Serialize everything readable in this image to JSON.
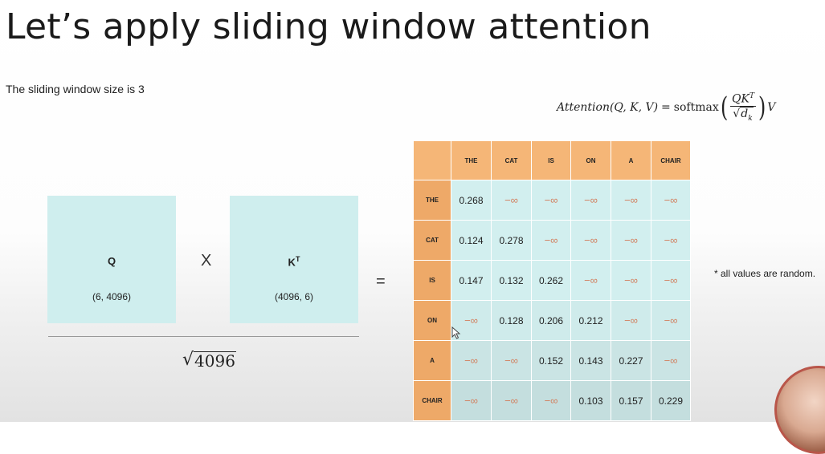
{
  "title": "Let’s apply sliding window attention",
  "subtitle": "The sliding window size is 3",
  "formula": {
    "lhs": "Attention(Q, K, V)",
    "equals": "=",
    "softmax": "softmax",
    "numerator": "QK",
    "numerator_sup": "T",
    "denominator": "d",
    "denominator_sub": "k",
    "trailing": "V"
  },
  "matrix_q": {
    "label": "Q",
    "dims": "(6, 4096)"
  },
  "operator_times": "X",
  "matrix_kt": {
    "label": "K",
    "label_sup": "T",
    "dims": "(4096, 6)"
  },
  "divisor": {
    "radical": "√",
    "value": "4096"
  },
  "equals_sign": "=",
  "table": {
    "columns": [
      "THE",
      "CAT",
      "IS",
      "ON",
      "A",
      "CHAIR"
    ],
    "rows": [
      {
        "label": "THE",
        "cells": [
          "0.268",
          "−∞",
          "−∞",
          "−∞",
          "−∞",
          "−∞"
        ]
      },
      {
        "label": "CAT",
        "cells": [
          "0.124",
          "0.278",
          "−∞",
          "−∞",
          "−∞",
          "−∞"
        ]
      },
      {
        "label": "IS",
        "cells": [
          "0.147",
          "0.132",
          "0.262",
          "−∞",
          "−∞",
          "−∞"
        ]
      },
      {
        "label": "ON",
        "cells": [
          "−∞",
          "0.128",
          "0.206",
          "0.212",
          "−∞",
          "−∞"
        ]
      },
      {
        "label": "A",
        "cells": [
          "−∞",
          "−∞",
          "0.152",
          "0.143",
          "0.227",
          "−∞"
        ]
      },
      {
        "label": "CHAIR",
        "cells": [
          "−∞",
          "−∞",
          "−∞",
          "0.103",
          "0.157",
          "0.229"
        ]
      }
    ]
  },
  "note": "* all values are random.",
  "colors": {
    "header_orange": "#f5b677",
    "cell_teal": "#d2efef",
    "matrix_teal": "#cfeeee",
    "neg_inf_text": "#d28060"
  },
  "icons": {
    "cursor": "mouse-pointer-icon",
    "presenter": "presenter-avatar"
  }
}
